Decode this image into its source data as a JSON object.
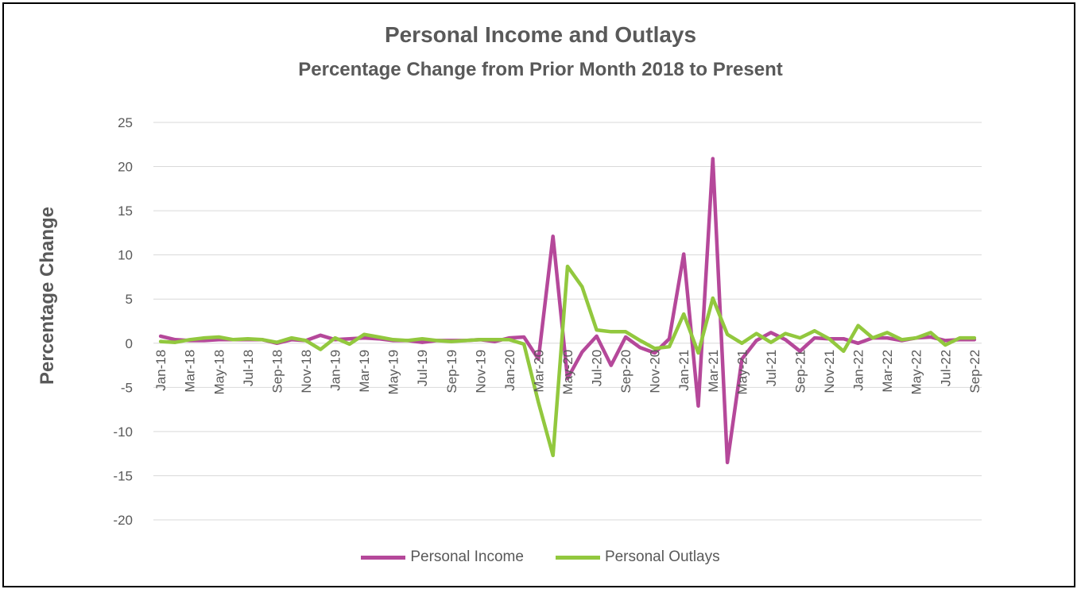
{
  "chart_data": {
    "type": "line",
    "title": "Personal Income and Outlays",
    "subtitle": "Percentage Change from Prior Month 2018 to Present",
    "xlabel": "",
    "ylabel": "Percentage Change",
    "ylim": [
      -20,
      25
    ],
    "yticks": [
      25,
      20,
      15,
      10,
      5,
      0,
      -5,
      -10,
      -15,
      -20
    ],
    "grid": true,
    "legend_position": "bottom",
    "x": [
      "Jan-18",
      "Feb-18",
      "Mar-18",
      "Apr-18",
      "May-18",
      "Jun-18",
      "Jul-18",
      "Aug-18",
      "Sep-18",
      "Oct-18",
      "Nov-18",
      "Dec-18",
      "Jan-19",
      "Feb-19",
      "Mar-19",
      "Apr-19",
      "May-19",
      "Jun-19",
      "Jul-19",
      "Aug-19",
      "Sep-19",
      "Oct-19",
      "Nov-19",
      "Dec-19",
      "Jan-20",
      "Feb-20",
      "Mar-20",
      "Apr-20",
      "May-20",
      "Jun-20",
      "Jul-20",
      "Aug-20",
      "Sep-20",
      "Oct-20",
      "Nov-20",
      "Dec-20",
      "Jan-21",
      "Feb-21",
      "Mar-21",
      "Apr-21",
      "May-21",
      "Jun-21",
      "Jul-21",
      "Aug-21",
      "Sep-21",
      "Oct-21",
      "Nov-21",
      "Dec-21",
      "Jan-22",
      "Feb-22",
      "Mar-22",
      "Apr-22",
      "May-22",
      "Jun-22",
      "Jul-22",
      "Aug-22",
      "Sep-22"
    ],
    "xtick_labels": [
      "Jan-18",
      "Mar-18",
      "May-18",
      "Jul-18",
      "Sep-18",
      "Nov-18",
      "Jan-19",
      "Mar-19",
      "May-19",
      "Jul-19",
      "Sep-19",
      "Nov-19",
      "Jan-20",
      "Mar-20",
      "May-20",
      "Jul-20",
      "Sep-20",
      "Nov-20",
      "Jan-21",
      "Mar-21",
      "May-21",
      "Jul-21",
      "Sep-21",
      "Nov-21",
      "Jan-22",
      "Mar-22",
      "May-22",
      "Jul-22",
      "Sep-22"
    ],
    "series": [
      {
        "name": "Personal Income",
        "color": "#B5489A",
        "values": [
          0.8,
          0.4,
          0.3,
          0.3,
          0.4,
          0.4,
          0.4,
          0.4,
          0.0,
          0.4,
          0.3,
          0.9,
          0.4,
          0.5,
          0.6,
          0.5,
          0.3,
          0.3,
          0.1,
          0.3,
          0.3,
          0.3,
          0.4,
          0.2,
          0.6,
          0.7,
          -1.8,
          12.1,
          -4.0,
          -1.0,
          0.8,
          -2.5,
          0.7,
          -0.5,
          -1.1,
          0.5,
          10.1,
          -7.1,
          20.9,
          -13.5,
          -1.8,
          0.3,
          1.2,
          0.4,
          -0.9,
          0.6,
          0.5,
          0.5,
          0.0,
          0.6,
          0.6,
          0.3,
          0.6,
          0.7,
          0.3,
          0.4,
          0.4
        ]
      },
      {
        "name": "Personal Outlays",
        "color": "#92C83E",
        "values": [
          0.2,
          0.1,
          0.4,
          0.6,
          0.7,
          0.4,
          0.5,
          0.4,
          0.1,
          0.6,
          0.3,
          -0.7,
          0.6,
          -0.1,
          1.0,
          0.7,
          0.4,
          0.3,
          0.5,
          0.3,
          0.2,
          0.3,
          0.4,
          0.4,
          0.4,
          -0.1,
          -6.7,
          -12.7,
          8.7,
          6.4,
          1.5,
          1.3,
          1.3,
          0.3,
          -0.6,
          -0.4,
          3.3,
          -1.1,
          5.1,
          1.0,
          0.0,
          1.1,
          0.1,
          1.1,
          0.6,
          1.4,
          0.5,
          -0.9,
          2.0,
          0.6,
          1.2,
          0.4,
          0.6,
          1.2,
          -0.2,
          0.6,
          0.6
        ]
      }
    ]
  }
}
